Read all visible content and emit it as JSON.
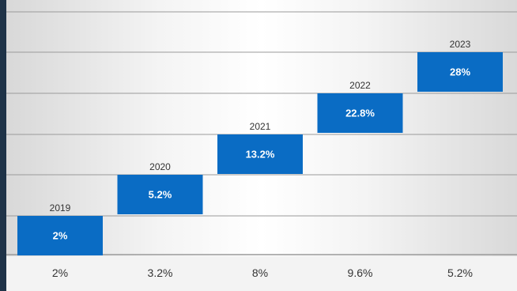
{
  "chart_data": {
    "type": "bar",
    "title": "",
    "categories": [
      "2019",
      "2020",
      "2021",
      "2022",
      "2023"
    ],
    "values": [
      2,
      5.2,
      13.2,
      22.8,
      28
    ],
    "value_labels": [
      "2%",
      "5.2%",
      "13.2%",
      "22.8%",
      "28%"
    ],
    "bottom_labels": [
      "2%",
      "3.2%",
      "8%",
      "9.6%",
      "5.2%"
    ],
    "xlabel": "",
    "ylabel": "",
    "grid": true
  },
  "colors": {
    "bar": "#0a6cc4",
    "grid": "#9a9a9a",
    "background_outer": "#1f3348"
  }
}
